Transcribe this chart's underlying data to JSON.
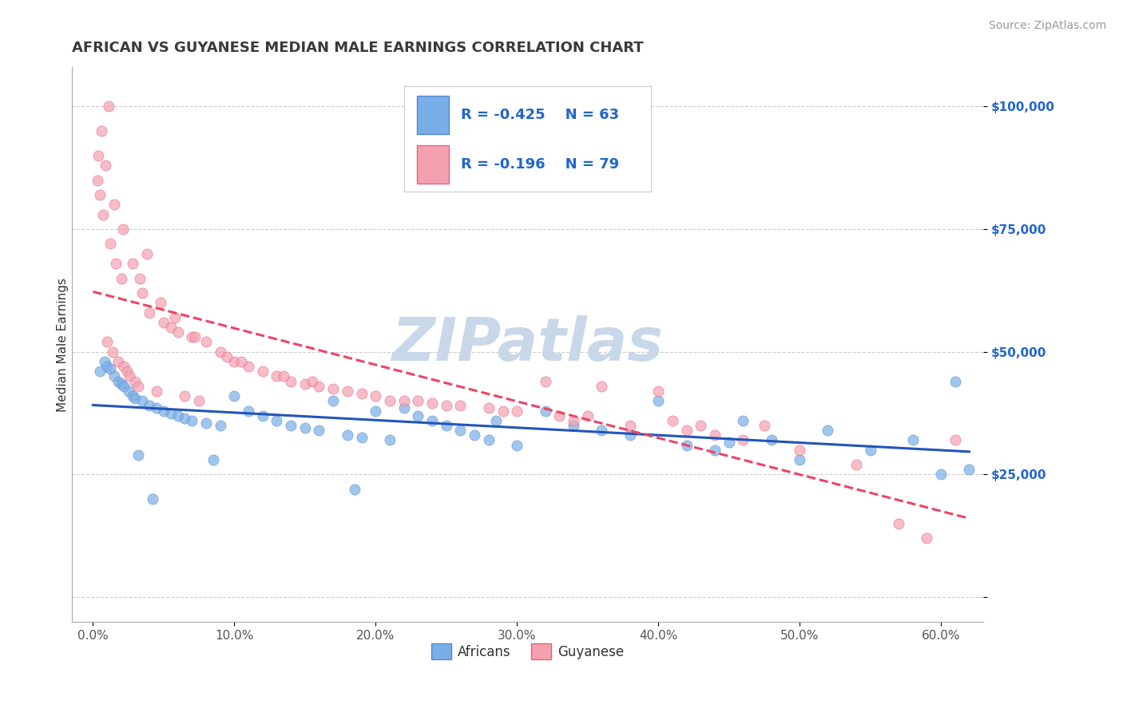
{
  "title": "AFRICAN VS GUYANESE MEDIAN MALE EARNINGS CORRELATION CHART",
  "source_text": "Source: ZipAtlas.com",
  "ylabel": "Median Male Earnings",
  "xlabel_ticks": [
    "0.0%",
    "10.0%",
    "20.0%",
    "30.0%",
    "40.0%",
    "50.0%",
    "60.0%"
  ],
  "xlabel_vals": [
    0.0,
    10.0,
    20.0,
    30.0,
    40.0,
    50.0,
    60.0
  ],
  "ylabel_ticks": [
    0,
    25000,
    50000,
    75000,
    100000
  ],
  "ylabel_labels": [
    "",
    "$25,000",
    "$50,000",
    "$75,000",
    "$100,000"
  ],
  "xlim": [
    -1.5,
    63.0
  ],
  "ylim": [
    -5000,
    108000
  ],
  "title_color": "#3a3a3a",
  "source_color": "#999999",
  "watermark_text": "ZIPatlas",
  "watermark_color": "#c8d8e8",
  "legend_R1": "-0.425",
  "legend_N1": "63",
  "legend_R2": "-0.196",
  "legend_N2": "79",
  "legend_color": "#2266cc",
  "africans_color": "#7aaee8",
  "africans_edge": "#5588cc",
  "guyanese_color": "#f5a0b0",
  "guyanese_edge": "#dd6677",
  "trend_african_color": "#2255bb",
  "trend_guyanese_color": "#ee4466",
  "africans_x": [
    0.5,
    0.8,
    1.0,
    1.2,
    1.5,
    1.8,
    2.0,
    2.2,
    2.5,
    2.8,
    3.0,
    3.5,
    4.0,
    4.5,
    5.0,
    5.5,
    6.0,
    6.5,
    7.0,
    8.0,
    9.0,
    10.0,
    11.0,
    12.0,
    13.0,
    14.0,
    15.0,
    16.0,
    17.0,
    18.0,
    19.0,
    20.0,
    21.0,
    22.0,
    23.0,
    24.0,
    25.0,
    26.0,
    27.0,
    28.0,
    30.0,
    32.0,
    34.0,
    36.0,
    38.0,
    40.0,
    42.0,
    44.0,
    46.0,
    48.0,
    50.0,
    52.0,
    55.0,
    58.0,
    60.0,
    61.0,
    62.0,
    3.2,
    4.2,
    8.5,
    18.5,
    28.5,
    45.0
  ],
  "africans_y": [
    46000,
    48000,
    47000,
    46500,
    45000,
    44000,
    43500,
    43000,
    42000,
    41000,
    40500,
    40000,
    39000,
    38500,
    38000,
    37500,
    37000,
    36500,
    36000,
    35500,
    35000,
    41000,
    38000,
    37000,
    36000,
    35000,
    34500,
    34000,
    40000,
    33000,
    32500,
    38000,
    32000,
    38500,
    37000,
    36000,
    35000,
    34000,
    33000,
    32000,
    31000,
    38000,
    35000,
    34000,
    33000,
    40000,
    31000,
    30000,
    36000,
    32000,
    28000,
    34000,
    30000,
    32000,
    25000,
    44000,
    26000,
    29000,
    20000,
    28000,
    22000,
    36000,
    31500
  ],
  "guyanese_x": [
    0.3,
    0.5,
    0.7,
    1.0,
    1.2,
    1.4,
    1.6,
    1.8,
    2.0,
    2.2,
    2.4,
    2.6,
    2.8,
    3.0,
    3.2,
    3.5,
    4.0,
    4.5,
    5.0,
    5.5,
    6.0,
    6.5,
    7.0,
    7.5,
    8.0,
    9.0,
    10.0,
    11.0,
    12.0,
    13.0,
    14.0,
    15.0,
    16.0,
    17.0,
    18.0,
    19.0,
    20.0,
    22.0,
    24.0,
    26.0,
    28.0,
    30.0,
    32.0,
    34.0,
    36.0,
    38.0,
    40.0,
    42.0,
    44.0,
    46.0,
    0.4,
    0.9,
    1.5,
    2.1,
    3.8,
    4.8,
    7.2,
    9.5,
    13.5,
    21.0,
    25.0,
    29.0,
    35.0,
    41.0,
    47.5,
    0.6,
    1.1,
    3.3,
    5.8,
    10.5,
    15.5,
    23.0,
    33.0,
    43.0,
    50.0,
    54.0,
    57.0,
    59.0,
    61.0
  ],
  "guyanese_y": [
    85000,
    82000,
    78000,
    52000,
    72000,
    50000,
    68000,
    48000,
    65000,
    47000,
    46000,
    45000,
    68000,
    44000,
    43000,
    62000,
    58000,
    42000,
    56000,
    55000,
    54000,
    41000,
    53000,
    40000,
    52000,
    50000,
    48000,
    47000,
    46000,
    45000,
    44000,
    43500,
    43000,
    42500,
    42000,
    41500,
    41000,
    40000,
    39500,
    39000,
    38500,
    38000,
    44000,
    36000,
    43000,
    35000,
    42000,
    34000,
    33000,
    32000,
    90000,
    88000,
    80000,
    75000,
    70000,
    60000,
    53000,
    49000,
    45000,
    40000,
    39000,
    38000,
    37000,
    36000,
    35000,
    95000,
    100000,
    65000,
    57000,
    48000,
    44000,
    40000,
    37000,
    35000,
    30000,
    27000,
    15000,
    12000,
    32000
  ]
}
